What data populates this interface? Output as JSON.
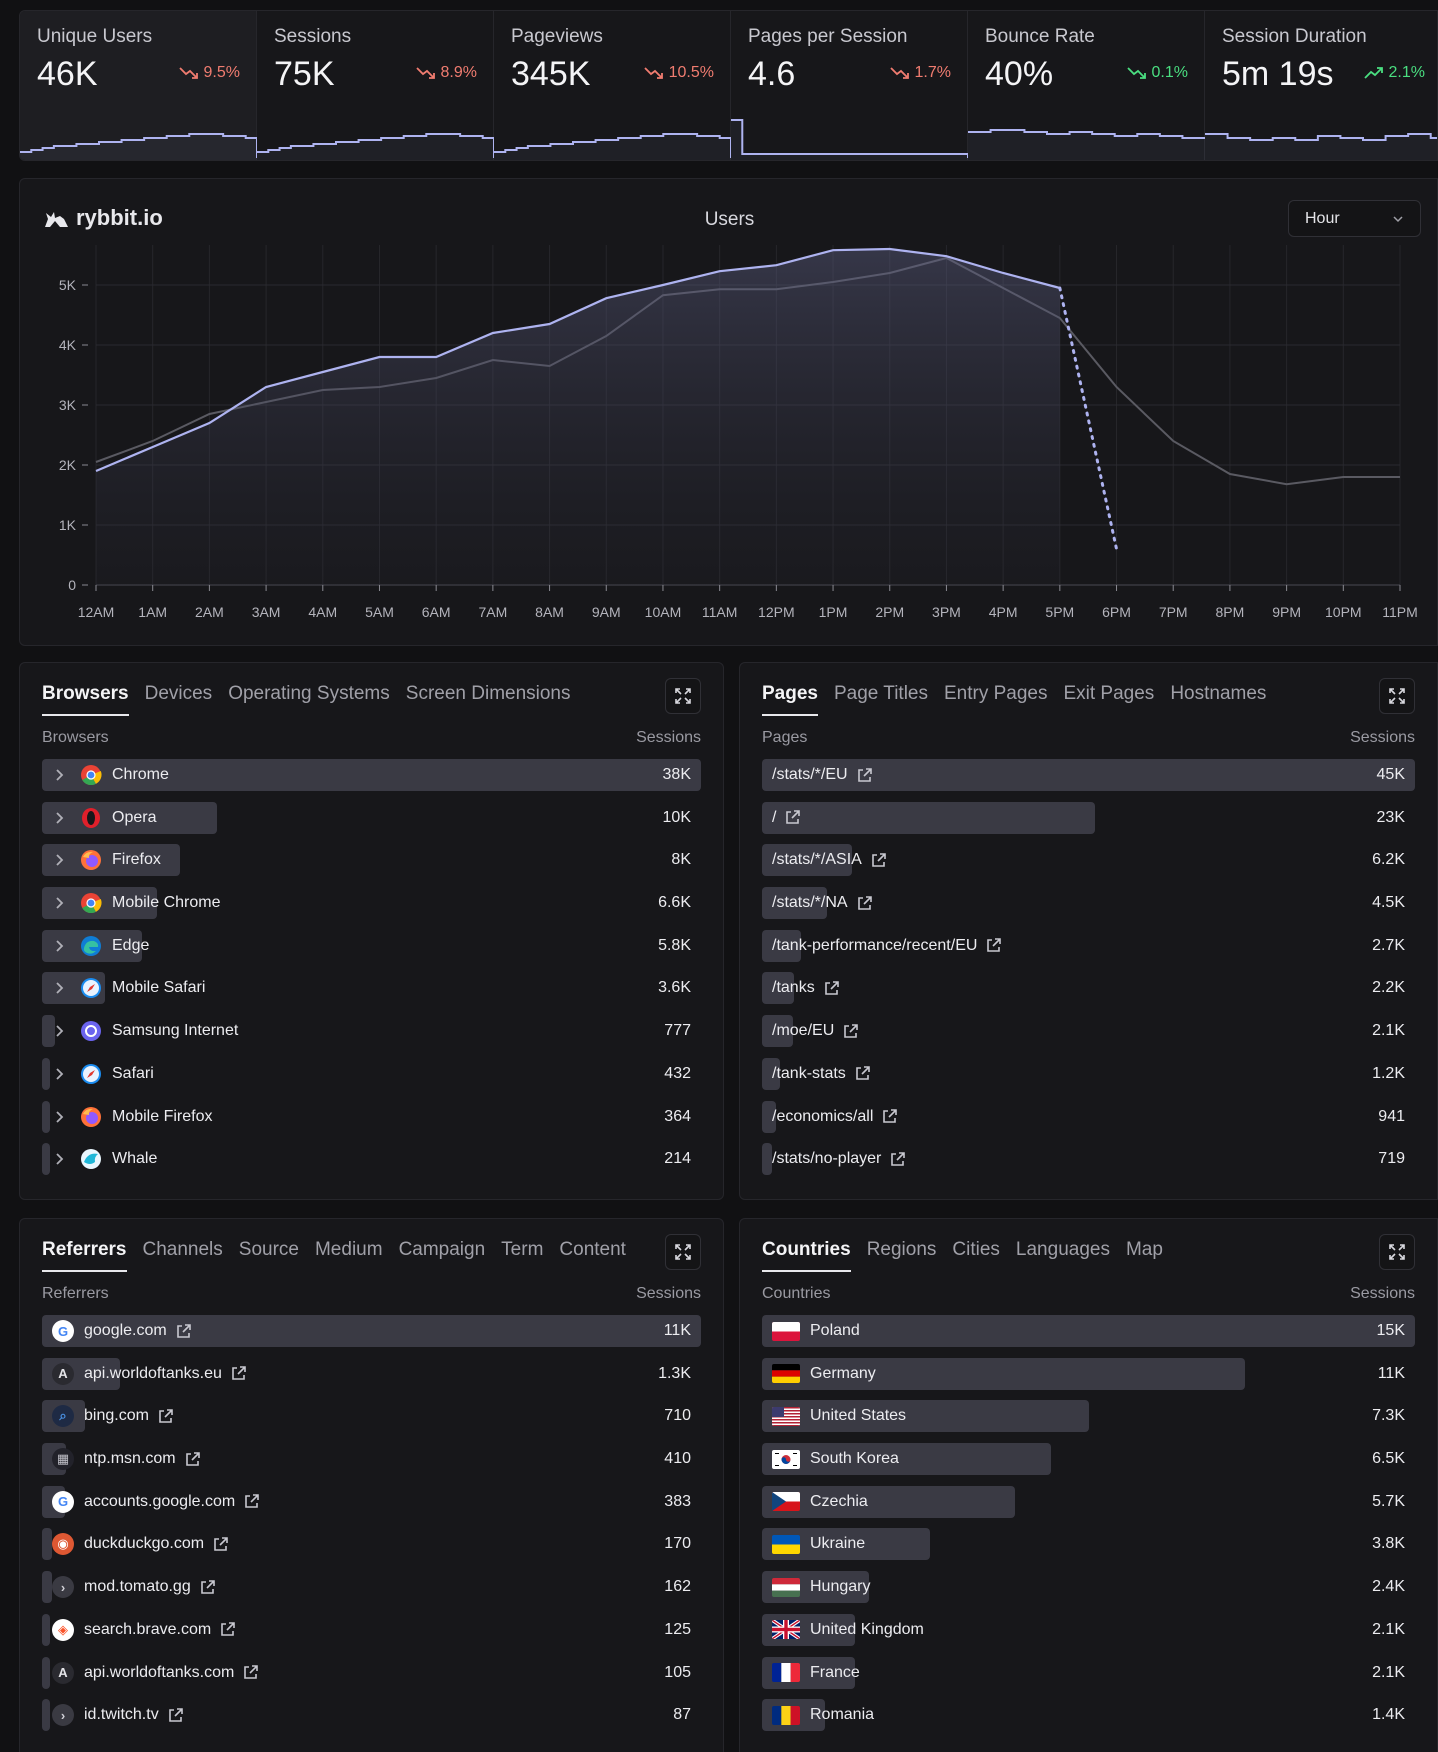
{
  "metrics": [
    {
      "title": "Unique Users",
      "value": "46K",
      "change": "9.5%",
      "trend": "down",
      "color": "#f07c70"
    },
    {
      "title": "Sessions",
      "value": "75K",
      "change": "8.9%",
      "trend": "down",
      "color": "#f07c70"
    },
    {
      "title": "Pageviews",
      "value": "345K",
      "change": "10.5%",
      "trend": "down",
      "color": "#f07c70"
    },
    {
      "title": "Pages per Session",
      "value": "4.6",
      "change": "1.7%",
      "trend": "down",
      "color": "#f07c70"
    },
    {
      "title": "Bounce Rate",
      "value": "40%",
      "change": "0.1%",
      "trend": "down",
      "color": "#4ade80"
    },
    {
      "title": "Session Duration",
      "value": "5m 19s",
      "change": "2.1%",
      "trend": "up",
      "color": "#4ade80"
    }
  ],
  "chart": {
    "brand": "rybbit.io",
    "title": "Users",
    "granularity": "Hour"
  },
  "chart_data": {
    "type": "line",
    "title": "Users",
    "categories": [
      "12AM",
      "1AM",
      "2AM",
      "3AM",
      "4AM",
      "5AM",
      "6AM",
      "7AM",
      "8AM",
      "9AM",
      "10AM",
      "11AM",
      "12PM",
      "1PM",
      "2PM",
      "3PM",
      "4PM",
      "5PM",
      "6PM",
      "7PM",
      "8PM",
      "9PM",
      "10PM",
      "11PM"
    ],
    "yticks": [
      "0",
      "1K",
      "2K",
      "3K",
      "4K",
      "5K"
    ],
    "ylim": [
      0,
      5600
    ],
    "series": [
      {
        "values": [
          1900,
          2300,
          2700,
          3300,
          3550,
          3800,
          3800,
          4200,
          4350,
          4780,
          5000,
          5230,
          5330,
          5580,
          5600,
          5480,
          5200,
          4950,
          600,
          null,
          null,
          null,
          null,
          null
        ],
        "dotted_from": 17,
        "color": "#aeb3f0"
      },
      {
        "values": [
          2050,
          2400,
          2850,
          3050,
          3250,
          3300,
          3450,
          3750,
          3650,
          4150,
          4830,
          4930,
          4930,
          5050,
          5200,
          5450,
          4950,
          4450,
          3300,
          2400,
          1850,
          1680,
          1800,
          1800
        ],
        "color": "#5a5a62"
      }
    ],
    "grid": true
  },
  "browsers": {
    "tabs": [
      "Browsers",
      "Devices",
      "Operating Systems",
      "Screen Dimensions"
    ],
    "col_left": "Browsers",
    "col_right": "Sessions",
    "rows": [
      {
        "name": "Chrome",
        "value": "38K",
        "frac": 1.0,
        "icon": "chrome-icon"
      },
      {
        "name": "Opera",
        "value": "10K",
        "frac": 0.265,
        "icon": "opera-icon"
      },
      {
        "name": "Firefox",
        "value": "8K",
        "frac": 0.21,
        "icon": "firefox-icon"
      },
      {
        "name": "Mobile Chrome",
        "value": "6.6K",
        "frac": 0.174,
        "icon": "chrome-icon"
      },
      {
        "name": "Edge",
        "value": "5.8K",
        "frac": 0.152,
        "icon": "edge-icon"
      },
      {
        "name": "Mobile Safari",
        "value": "3.6K",
        "frac": 0.095,
        "icon": "safari-icon"
      },
      {
        "name": "Samsung Internet",
        "value": "777",
        "frac": 0.02,
        "icon": "samsung-icon"
      },
      {
        "name": "Safari",
        "value": "432",
        "frac": 0.012,
        "icon": "safari-icon"
      },
      {
        "name": "Mobile Firefox",
        "value": "364",
        "frac": 0.01,
        "icon": "firefox-icon"
      },
      {
        "name": "Whale",
        "value": "214",
        "frac": 0.006,
        "icon": "whale-icon"
      }
    ]
  },
  "pages": {
    "tabs": [
      "Pages",
      "Page Titles",
      "Entry Pages",
      "Exit Pages",
      "Hostnames"
    ],
    "col_left": "Pages",
    "col_right": "Sessions",
    "rows": [
      {
        "name": "/stats/*/EU",
        "value": "45K",
        "frac": 1.0
      },
      {
        "name": "/",
        "value": "23K",
        "frac": 0.51
      },
      {
        "name": "/stats/*/ASIA",
        "value": "6.2K",
        "frac": 0.138
      },
      {
        "name": "/stats/*/NA",
        "value": "4.5K",
        "frac": 0.1
      },
      {
        "name": "/tank-performance/recent/EU",
        "value": "2.7K",
        "frac": 0.06
      },
      {
        "name": "/tanks",
        "value": "2.2K",
        "frac": 0.049
      },
      {
        "name": "/moe/EU",
        "value": "2.1K",
        "frac": 0.047
      },
      {
        "name": "/tank-stats",
        "value": "1.2K",
        "frac": 0.027
      },
      {
        "name": "/economics/all",
        "value": "941",
        "frac": 0.021
      },
      {
        "name": "/stats/no-player",
        "value": "719",
        "frac": 0.016
      }
    ]
  },
  "referrers": {
    "tabs": [
      "Referrers",
      "Channels",
      "Source",
      "Medium",
      "Campaign",
      "Term",
      "Content"
    ],
    "col_left": "Referrers",
    "col_right": "Sessions",
    "rows": [
      {
        "name": "google.com",
        "value": "11K",
        "frac": 1.0,
        "icon": "google-icon",
        "glyph": "G",
        "bg": "#ffffff",
        "fg": "#4285f4"
      },
      {
        "name": "api.worldoftanks.eu",
        "value": "1.3K",
        "frac": 0.118,
        "icon": "letter-a-icon",
        "glyph": "A",
        "bg": "#2a2a30",
        "fg": "#e4e4e8"
      },
      {
        "name": "bing.com",
        "value": "710",
        "frac": 0.065,
        "icon": "bing-search-icon",
        "glyph": "⌕",
        "bg": "#1e2a44",
        "fg": "#4a90e2"
      },
      {
        "name": "ntp.msn.com",
        "value": "410",
        "frac": 0.037,
        "icon": "msn-icon",
        "glyph": "▦",
        "bg": "#22222a",
        "fg": "#c0c0c8"
      },
      {
        "name": "accounts.google.com",
        "value": "383",
        "frac": 0.035,
        "icon": "google-icon",
        "glyph": "G",
        "bg": "#ffffff",
        "fg": "#4285f4"
      },
      {
        "name": "duckduckgo.com",
        "value": "170",
        "frac": 0.015,
        "icon": "duckduckgo-icon",
        "glyph": "◉",
        "bg": "#de5833",
        "fg": "#ffffff"
      },
      {
        "name": "mod.tomato.gg",
        "value": "162",
        "frac": 0.015,
        "icon": "tomato-icon",
        "glyph": "›",
        "bg": "#3a3a42",
        "fg": "#d0d0d6"
      },
      {
        "name": "search.brave.com",
        "value": "125",
        "frac": 0.011,
        "icon": "brave-icon",
        "glyph": "◈",
        "bg": "#ffffff",
        "fg": "#fb542b"
      },
      {
        "name": "api.worldoftanks.com",
        "value": "105",
        "frac": 0.01,
        "icon": "letter-a-icon",
        "glyph": "A",
        "bg": "#2a2a30",
        "fg": "#e4e4e8"
      },
      {
        "name": "id.twitch.tv",
        "value": "87",
        "frac": 0.008,
        "icon": "twitch-icon",
        "glyph": "›",
        "bg": "#3a3a42",
        "fg": "#d0d0d6"
      }
    ]
  },
  "countries": {
    "tabs": [
      "Countries",
      "Regions",
      "Cities",
      "Languages",
      "Map"
    ],
    "col_left": "Countries",
    "col_right": "Sessions",
    "rows": [
      {
        "name": "Poland",
        "value": "15K",
        "frac": 1.0,
        "flag": "pl"
      },
      {
        "name": "Germany",
        "value": "11K",
        "frac": 0.74,
        "flag": "de"
      },
      {
        "name": "United States",
        "value": "7.3K",
        "frac": 0.5,
        "flag": "us"
      },
      {
        "name": "South Korea",
        "value": "6.5K",
        "frac": 0.443,
        "flag": "kr"
      },
      {
        "name": "Czechia",
        "value": "5.7K",
        "frac": 0.388,
        "flag": "cz"
      },
      {
        "name": "Ukraine",
        "value": "3.8K",
        "frac": 0.258,
        "flag": "ua"
      },
      {
        "name": "Hungary",
        "value": "2.4K",
        "frac": 0.164,
        "flag": "hu"
      },
      {
        "name": "United Kingdom",
        "value": "2.1K",
        "frac": 0.143,
        "flag": "gb"
      },
      {
        "name": "France",
        "value": "2.1K",
        "frac": 0.143,
        "flag": "fr"
      },
      {
        "name": "Romania",
        "value": "1.4K",
        "frac": 0.096,
        "flag": "ro"
      }
    ]
  }
}
